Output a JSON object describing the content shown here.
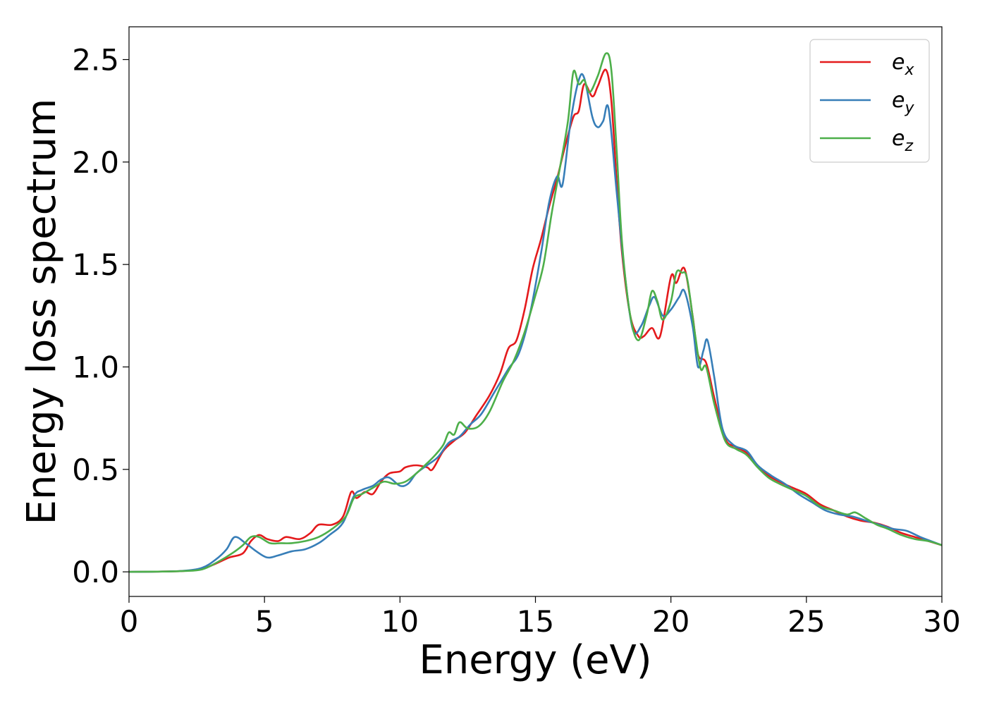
{
  "chart_data": {
    "type": "line",
    "xlabel": "Energy (eV)",
    "ylabel": "Energy loss spectrum",
    "xlim": [
      0,
      30
    ],
    "ylim": [
      -0.12,
      2.66
    ],
    "xticks": [
      0,
      5,
      10,
      15,
      20,
      25,
      30
    ],
    "xtick_labels": [
      "0",
      "5",
      "10",
      "15",
      "20",
      "25",
      "30"
    ],
    "yticks": [
      0.0,
      0.5,
      1.0,
      1.5,
      2.0,
      2.5
    ],
    "ytick_labels": [
      "0.0",
      "0.5",
      "1.0",
      "1.5",
      "2.0",
      "2.5"
    ],
    "grid": false,
    "legend_position": "top-right",
    "series": [
      {
        "name": "e",
        "sub": "x",
        "color": "#e41a1c",
        "points": [
          [
            0,
            0
          ],
          [
            1,
            0.001
          ],
          [
            2,
            0.004
          ],
          [
            2.7,
            0.015
          ],
          [
            3.2,
            0.04
          ],
          [
            3.7,
            0.07
          ],
          [
            4.2,
            0.09
          ],
          [
            4.5,
            0.15
          ],
          [
            4.8,
            0.18
          ],
          [
            5.1,
            0.16
          ],
          [
            5.5,
            0.15
          ],
          [
            5.8,
            0.17
          ],
          [
            6.3,
            0.16
          ],
          [
            6.7,
            0.19
          ],
          [
            7.0,
            0.23
          ],
          [
            7.5,
            0.23
          ],
          [
            7.9,
            0.27
          ],
          [
            8.2,
            0.39
          ],
          [
            8.4,
            0.36
          ],
          [
            8.7,
            0.39
          ],
          [
            9.0,
            0.38
          ],
          [
            9.3,
            0.44
          ],
          [
            9.6,
            0.48
          ],
          [
            10.0,
            0.49
          ],
          [
            10.2,
            0.51
          ],
          [
            10.6,
            0.52
          ],
          [
            11.0,
            0.51
          ],
          [
            11.2,
            0.5
          ],
          [
            11.6,
            0.59
          ],
          [
            12.0,
            0.64
          ],
          [
            12.4,
            0.68
          ],
          [
            12.8,
            0.76
          ],
          [
            13.3,
            0.86
          ],
          [
            13.7,
            0.97
          ],
          [
            14.0,
            1.09
          ],
          [
            14.3,
            1.13
          ],
          [
            14.6,
            1.28
          ],
          [
            14.9,
            1.48
          ],
          [
            15.2,
            1.62
          ],
          [
            15.5,
            1.78
          ],
          [
            15.8,
            1.92
          ],
          [
            16.1,
            2.08
          ],
          [
            16.4,
            2.22
          ],
          [
            16.6,
            2.25
          ],
          [
            16.8,
            2.38
          ],
          [
            17.1,
            2.32
          ],
          [
            17.3,
            2.37
          ],
          [
            17.6,
            2.45
          ],
          [
            17.8,
            2.3
          ],
          [
            18.0,
            1.9
          ],
          [
            18.2,
            1.55
          ],
          [
            18.5,
            1.25
          ],
          [
            18.8,
            1.15
          ],
          [
            19.0,
            1.15
          ],
          [
            19.3,
            1.19
          ],
          [
            19.6,
            1.15
          ],
          [
            20.0,
            1.44
          ],
          [
            20.2,
            1.41
          ],
          [
            20.5,
            1.48
          ],
          [
            20.8,
            1.25
          ],
          [
            21.0,
            1.06
          ],
          [
            21.3,
            1.02
          ],
          [
            21.6,
            0.85
          ],
          [
            22.0,
            0.65
          ],
          [
            22.4,
            0.61
          ],
          [
            22.8,
            0.58
          ],
          [
            23.2,
            0.52
          ],
          [
            23.6,
            0.47
          ],
          [
            24.0,
            0.44
          ],
          [
            24.5,
            0.41
          ],
          [
            25.0,
            0.38
          ],
          [
            25.5,
            0.33
          ],
          [
            26.0,
            0.3
          ],
          [
            26.5,
            0.27
          ],
          [
            27.0,
            0.25
          ],
          [
            27.5,
            0.24
          ],
          [
            28.0,
            0.22
          ],
          [
            28.5,
            0.19
          ],
          [
            29.0,
            0.17
          ],
          [
            29.5,
            0.15
          ],
          [
            30.0,
            0.13
          ]
        ]
      },
      {
        "name": "e",
        "sub": "y",
        "color": "#377eb8",
        "points": [
          [
            0,
            0
          ],
          [
            1,
            0.001
          ],
          [
            2,
            0.005
          ],
          [
            2.7,
            0.02
          ],
          [
            3.2,
            0.06
          ],
          [
            3.6,
            0.11
          ],
          [
            3.9,
            0.17
          ],
          [
            4.3,
            0.14
          ],
          [
            4.7,
            0.1
          ],
          [
            5.1,
            0.07
          ],
          [
            5.5,
            0.08
          ],
          [
            6.0,
            0.1
          ],
          [
            6.5,
            0.11
          ],
          [
            7.0,
            0.14
          ],
          [
            7.4,
            0.18
          ],
          [
            7.9,
            0.24
          ],
          [
            8.3,
            0.37
          ],
          [
            8.6,
            0.4
          ],
          [
            9.0,
            0.42
          ],
          [
            9.3,
            0.45
          ],
          [
            9.6,
            0.46
          ],
          [
            10.0,
            0.42
          ],
          [
            10.3,
            0.43
          ],
          [
            10.6,
            0.48
          ],
          [
            11.0,
            0.52
          ],
          [
            11.4,
            0.56
          ],
          [
            11.8,
            0.63
          ],
          [
            12.2,
            0.66
          ],
          [
            12.6,
            0.72
          ],
          [
            13.0,
            0.77
          ],
          [
            13.5,
            0.88
          ],
          [
            14.0,
            0.99
          ],
          [
            14.4,
            1.07
          ],
          [
            14.8,
            1.26
          ],
          [
            15.2,
            1.55
          ],
          [
            15.5,
            1.8
          ],
          [
            15.8,
            1.93
          ],
          [
            16.0,
            1.89
          ],
          [
            16.3,
            2.2
          ],
          [
            16.6,
            2.4
          ],
          [
            16.8,
            2.41
          ],
          [
            17.1,
            2.22
          ],
          [
            17.3,
            2.17
          ],
          [
            17.5,
            2.2
          ],
          [
            17.7,
            2.26
          ],
          [
            18.0,
            1.85
          ],
          [
            18.3,
            1.45
          ],
          [
            18.6,
            1.18
          ],
          [
            18.9,
            1.2
          ],
          [
            19.2,
            1.3
          ],
          [
            19.4,
            1.34
          ],
          [
            19.7,
            1.25
          ],
          [
            20.0,
            1.28
          ],
          [
            20.3,
            1.34
          ],
          [
            20.5,
            1.37
          ],
          [
            20.8,
            1.2
          ],
          [
            21.0,
            1.0
          ],
          [
            21.2,
            1.08
          ],
          [
            21.35,
            1.13
          ],
          [
            21.6,
            0.95
          ],
          [
            21.9,
            0.7
          ],
          [
            22.3,
            0.62
          ],
          [
            22.8,
            0.59
          ],
          [
            23.2,
            0.52
          ],
          [
            23.7,
            0.47
          ],
          [
            24.2,
            0.43
          ],
          [
            24.7,
            0.38
          ],
          [
            25.2,
            0.34
          ],
          [
            25.7,
            0.3
          ],
          [
            26.2,
            0.28
          ],
          [
            26.7,
            0.27
          ],
          [
            27.2,
            0.25
          ],
          [
            27.7,
            0.23
          ],
          [
            28.2,
            0.21
          ],
          [
            28.7,
            0.2
          ],
          [
            29.2,
            0.17
          ],
          [
            29.6,
            0.15
          ],
          [
            30.0,
            0.13
          ]
        ]
      },
      {
        "name": "e",
        "sub": "z",
        "color": "#4daf4a",
        "points": [
          [
            0,
            0
          ],
          [
            1,
            0.001
          ],
          [
            2,
            0.004
          ],
          [
            2.7,
            0.012
          ],
          [
            3.3,
            0.05
          ],
          [
            3.8,
            0.09
          ],
          [
            4.2,
            0.13
          ],
          [
            4.5,
            0.17
          ],
          [
            4.8,
            0.17
          ],
          [
            5.2,
            0.14
          ],
          [
            5.6,
            0.14
          ],
          [
            6.0,
            0.14
          ],
          [
            6.5,
            0.15
          ],
          [
            7.0,
            0.17
          ],
          [
            7.5,
            0.21
          ],
          [
            8.0,
            0.27
          ],
          [
            8.3,
            0.36
          ],
          [
            8.6,
            0.38
          ],
          [
            9.0,
            0.41
          ],
          [
            9.4,
            0.44
          ],
          [
            9.8,
            0.43
          ],
          [
            10.2,
            0.44
          ],
          [
            10.6,
            0.48
          ],
          [
            11.0,
            0.53
          ],
          [
            11.3,
            0.57
          ],
          [
            11.6,
            0.62
          ],
          [
            11.8,
            0.68
          ],
          [
            12.0,
            0.67
          ],
          [
            12.2,
            0.73
          ],
          [
            12.5,
            0.7
          ],
          [
            12.9,
            0.71
          ],
          [
            13.3,
            0.78
          ],
          [
            13.8,
            0.93
          ],
          [
            14.2,
            1.03
          ],
          [
            14.6,
            1.17
          ],
          [
            15.0,
            1.35
          ],
          [
            15.3,
            1.5
          ],
          [
            15.6,
            1.75
          ],
          [
            15.9,
            1.97
          ],
          [
            16.2,
            2.2
          ],
          [
            16.4,
            2.44
          ],
          [
            16.6,
            2.38
          ],
          [
            16.8,
            2.4
          ],
          [
            17.0,
            2.34
          ],
          [
            17.3,
            2.42
          ],
          [
            17.6,
            2.53
          ],
          [
            17.8,
            2.45
          ],
          [
            18.0,
            2.05
          ],
          [
            18.2,
            1.6
          ],
          [
            18.5,
            1.25
          ],
          [
            18.8,
            1.13
          ],
          [
            19.1,
            1.25
          ],
          [
            19.3,
            1.37
          ],
          [
            19.5,
            1.32
          ],
          [
            19.7,
            1.23
          ],
          [
            20.0,
            1.32
          ],
          [
            20.2,
            1.46
          ],
          [
            20.4,
            1.46
          ],
          [
            20.6,
            1.43
          ],
          [
            20.9,
            1.15
          ],
          [
            21.1,
            0.99
          ],
          [
            21.3,
            1.0
          ],
          [
            21.6,
            0.82
          ],
          [
            22.0,
            0.64
          ],
          [
            22.4,
            0.6
          ],
          [
            22.8,
            0.57
          ],
          [
            23.2,
            0.51
          ],
          [
            23.6,
            0.46
          ],
          [
            24.0,
            0.43
          ],
          [
            24.5,
            0.4
          ],
          [
            25.0,
            0.37
          ],
          [
            25.5,
            0.32
          ],
          [
            26.0,
            0.3
          ],
          [
            26.5,
            0.28
          ],
          [
            26.8,
            0.29
          ],
          [
            27.2,
            0.26
          ],
          [
            27.6,
            0.23
          ],
          [
            28.0,
            0.21
          ],
          [
            28.5,
            0.18
          ],
          [
            29.0,
            0.16
          ],
          [
            29.5,
            0.15
          ],
          [
            30.0,
            0.13
          ]
        ]
      }
    ]
  }
}
